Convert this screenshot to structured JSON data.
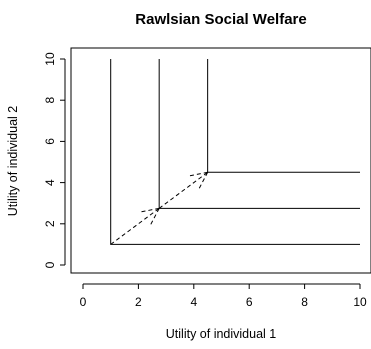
{
  "chart_data": {
    "type": "line",
    "title": "Rawlsian Social Welfare",
    "xlabel": "Utility of individual 1",
    "ylabel": "Utility of individual 2",
    "xlim": [
      -0.4,
      10.4
    ],
    "ylim": [
      -0.4,
      10.4
    ],
    "x_ticks": [
      0,
      2,
      4,
      6,
      8,
      10
    ],
    "y_ticks": [
      0,
      2,
      4,
      6,
      8,
      10
    ],
    "grid": false,
    "legend": "none",
    "colors": {
      "line": "#000000",
      "background": "#ffffff"
    },
    "series": [
      {
        "x": [
          1,
          1,
          10
        ],
        "y": [
          10,
          1,
          1
        ]
      },
      {
        "x": [
          2.75,
          2.75,
          10
        ],
        "y": [
          10,
          2.75,
          2.75
        ]
      },
      {
        "x": [
          4.5,
          4.5,
          10
        ],
        "y": [
          10,
          4.5,
          4.5
        ]
      }
    ],
    "arrows": [
      {
        "from": [
          1,
          1
        ],
        "to": [
          2.75,
          2.75
        ],
        "style": "dashed"
      },
      {
        "from": [
          2.75,
          2.75
        ],
        "to": [
          4.5,
          4.5
        ],
        "style": "dashed"
      }
    ]
  }
}
